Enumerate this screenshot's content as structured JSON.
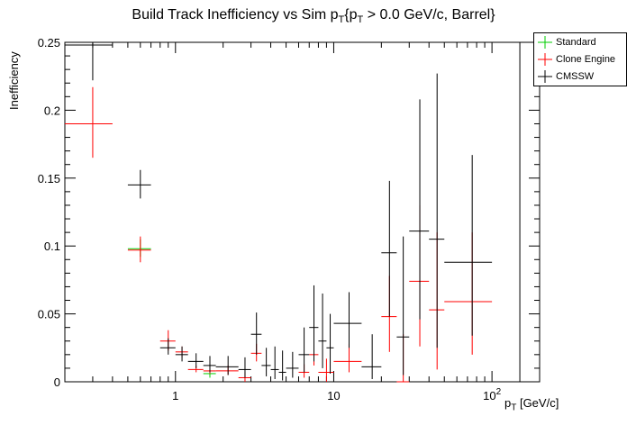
{
  "chart_data": {
    "type": "scatter",
    "title_parts": {
      "main": "Build Track Inefficiency vs Sim p",
      "sub1": "T",
      "mid": "{p",
      "sub2": "T",
      "end": " > 0.0 GeV/c, Barrel}"
    },
    "xlabel": {
      "main": "p",
      "sub": "T",
      "unit": " [GeV/c]"
    },
    "ylabel": "Inefficiency",
    "xscale": "log",
    "xlim": [
      0.2,
      200
    ],
    "ylim": [
      0,
      0.25
    ],
    "y_ticks": [
      "0",
      "0.05",
      "0.1",
      "0.15",
      "0.2",
      "0.25"
    ],
    "x_ticks": [
      {
        "label": "1"
      },
      {
        "label": "10"
      },
      {
        "label": "10",
        "sup": "2"
      }
    ],
    "legend_position": "top-right",
    "series": [
      {
        "name": "Standard",
        "color": "#00cc00",
        "points": [
          {
            "x": 0.6,
            "xerr": [
              0.5,
              0.7
            ],
            "y": 0.098,
            "yerr": [
              0.092,
              0.105
            ]
          },
          {
            "x": 1.65,
            "xerr": [
              1.5,
              1.8
            ],
            "y": 0.006,
            "yerr": [
              0.003,
              0.009
            ]
          }
        ]
      },
      {
        "name": "Clone Engine",
        "color": "#ff0000",
        "points": [
          {
            "x": 0.3,
            "xerr": [
              0.2,
              0.4
            ],
            "y": 0.19,
            "yerr": [
              0.165,
              0.217
            ]
          },
          {
            "x": 0.6,
            "xerr": [
              0.5,
              0.7
            ],
            "y": 0.097,
            "yerr": [
              0.088,
              0.107
            ]
          },
          {
            "x": 0.9,
            "xerr": [
              0.8,
              1.0
            ],
            "y": 0.03,
            "yerr": [
              0.023,
              0.038
            ]
          },
          {
            "x": 1.1,
            "xerr": [
              1.0,
              1.2
            ],
            "y": 0.022,
            "yerr": [
              0.018,
              0.026
            ]
          },
          {
            "x": 1.35,
            "xerr": [
              1.2,
              1.5
            ],
            "y": 0.009,
            "yerr": [
              0.007,
              0.012
            ]
          },
          {
            "x": 1.65,
            "xerr": [
              1.5,
              1.8
            ],
            "y": 0.008,
            "yerr": [
              0.006,
              0.011
            ]
          },
          {
            "x": 2.15,
            "xerr": [
              1.8,
              2.5
            ],
            "y": 0.008,
            "yerr": [
              0.005,
              0.012
            ]
          },
          {
            "x": 2.75,
            "xerr": [
              2.5,
              3.0
            ],
            "y": 0.003,
            "yerr": [
              0.0,
              0.007
            ]
          },
          {
            "x": 3.25,
            "xerr": [
              3.0,
              3.5
            ],
            "y": 0.021,
            "yerr": [
              0.015,
              0.028
            ]
          },
          {
            "x": 6.5,
            "xerr": [
              6.0,
              7.0
            ],
            "y": 0.007,
            "yerr": [
              0.003,
              0.013
            ]
          },
          {
            "x": 7.5,
            "xerr": [
              7.0,
              8.0
            ],
            "y": 0.02,
            "yerr": [
              0.012,
              0.03
            ]
          },
          {
            "x": 9.0,
            "xerr": [
              8.0,
              10.0
            ],
            "y": 0.007,
            "yerr": [
              0.0,
              0.017
            ]
          },
          {
            "x": 12.5,
            "xerr": [
              10.0,
              15.0
            ],
            "y": 0.015,
            "yerr": [
              0.007,
              0.028
            ]
          },
          {
            "x": 22.5,
            "xerr": [
              20.0,
              25.0
            ],
            "y": 0.048,
            "yerr": [
              0.022,
              0.078
            ]
          },
          {
            "x": 27.5,
            "xerr": [
              25.0,
              30.0
            ],
            "y": 0.0,
            "yerr": [
              0.0,
              0.035
            ]
          },
          {
            "x": 35.0,
            "xerr": [
              30.0,
              40.0
            ],
            "y": 0.074,
            "yerr": [
              0.026,
              0.13
            ]
          },
          {
            "x": 45.0,
            "xerr": [
              40.0,
              50.0
            ],
            "y": 0.053,
            "yerr": [
              0.009,
              0.11
            ]
          },
          {
            "x": 75.0,
            "xerr": [
              50.0,
              100.0
            ],
            "y": 0.059,
            "yerr": [
              0.02,
              0.11
            ]
          }
        ]
      },
      {
        "name": "CMSSW",
        "color": "#000000",
        "points": [
          {
            "x": 0.3,
            "xerr": [
              0.2,
              0.4
            ],
            "y": 0.248,
            "yerr": [
              0.222,
              0.25
            ]
          },
          {
            "x": 0.6,
            "xerr": [
              0.5,
              0.7
            ],
            "y": 0.145,
            "yerr": [
              0.135,
              0.156
            ]
          },
          {
            "x": 0.9,
            "xerr": [
              0.8,
              1.0
            ],
            "y": 0.025,
            "yerr": [
              0.02,
              0.032
            ]
          },
          {
            "x": 1.1,
            "xerr": [
              1.0,
              1.2
            ],
            "y": 0.02,
            "yerr": [
              0.015,
              0.026
            ]
          },
          {
            "x": 1.35,
            "xerr": [
              1.2,
              1.5
            ],
            "y": 0.015,
            "yerr": [
              0.01,
              0.021
            ]
          },
          {
            "x": 1.65,
            "xerr": [
              1.5,
              1.8
            ],
            "y": 0.012,
            "yerr": [
              0.007,
              0.019
            ]
          },
          {
            "x": 2.15,
            "xerr": [
              1.8,
              2.5
            ],
            "y": 0.011,
            "yerr": [
              0.005,
              0.019
            ]
          },
          {
            "x": 2.75,
            "xerr": [
              2.5,
              3.0
            ],
            "y": 0.009,
            "yerr": [
              0.003,
              0.018
            ]
          },
          {
            "x": 3.25,
            "xerr": [
              3.0,
              3.5
            ],
            "y": 0.035,
            "yerr": [
              0.02,
              0.051
            ]
          },
          {
            "x": 3.75,
            "xerr": [
              3.5,
              4.0
            ],
            "y": 0.012,
            "yerr": [
              0.004,
              0.025
            ]
          },
          {
            "x": 4.25,
            "xerr": [
              4.0,
              4.5
            ],
            "y": 0.009,
            "yerr": [
              0.002,
              0.026
            ]
          },
          {
            "x": 4.75,
            "xerr": [
              4.5,
              5.0
            ],
            "y": 0.007,
            "yerr": [
              0.001,
              0.023
            ]
          },
          {
            "x": 5.5,
            "xerr": [
              5.0,
              6.0
            ],
            "y": 0.01,
            "yerr": [
              0.003,
              0.022
            ]
          },
          {
            "x": 6.5,
            "xerr": [
              6.0,
              7.0
            ],
            "y": 0.02,
            "yerr": [
              0.007,
              0.04
            ]
          },
          {
            "x": 7.5,
            "xerr": [
              7.0,
              8.0
            ],
            "y": 0.04,
            "yerr": [
              0.015,
              0.071
            ]
          },
          {
            "x": 8.5,
            "xerr": [
              8.0,
              9.0
            ],
            "y": 0.03,
            "yerr": [
              0.01,
              0.065
            ]
          },
          {
            "x": 9.5,
            "xerr": [
              9.0,
              10.0
            ],
            "y": 0.025,
            "yerr": [
              0.006,
              0.05
            ]
          },
          {
            "x": 12.5,
            "xerr": [
              10.0,
              15.0
            ],
            "y": 0.043,
            "yerr": [
              0.025,
              0.066
            ]
          },
          {
            "x": 17.5,
            "xerr": [
              15.0,
              20.0
            ],
            "y": 0.011,
            "yerr": [
              0.002,
              0.035
            ]
          },
          {
            "x": 22.5,
            "xerr": [
              20.0,
              25.0
            ],
            "y": 0.095,
            "yerr": [
              0.048,
              0.148
            ]
          },
          {
            "x": 27.5,
            "xerr": [
              25.0,
              30.0
            ],
            "y": 0.033,
            "yerr": [
              0.005,
              0.107
            ]
          },
          {
            "x": 35.0,
            "xerr": [
              30.0,
              40.0
            ],
            "y": 0.111,
            "yerr": [
              0.046,
              0.208
            ]
          },
          {
            "x": 45.0,
            "xerr": [
              40.0,
              50.0
            ],
            "y": 0.105,
            "yerr": [
              0.025,
              0.227
            ]
          },
          {
            "x": 75.0,
            "xerr": [
              50.0,
              100.0
            ],
            "y": 0.088,
            "yerr": [
              0.034,
              0.167
            ]
          },
          {
            "x": 150.0,
            "xerr": [
              100.0,
              200.0
            ],
            "y": 0.25,
            "yerr": [
              0.0,
              0.25
            ]
          }
        ]
      }
    ]
  }
}
